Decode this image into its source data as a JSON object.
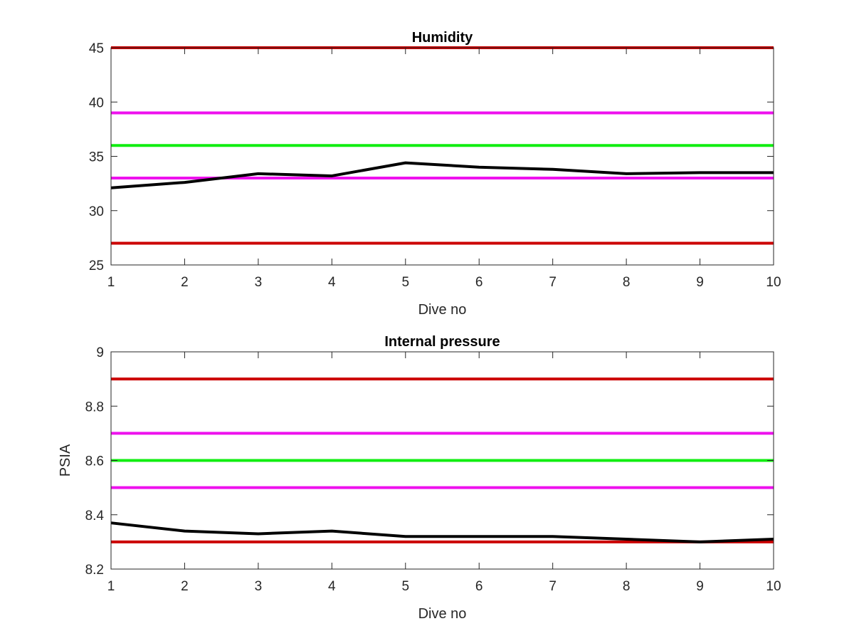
{
  "chart_data": [
    {
      "type": "line",
      "title": "Humidity",
      "xlabel": "Dive no",
      "ylabel": "",
      "xlim": [
        1,
        10
      ],
      "ylim": [
        25,
        45
      ],
      "xticks": [
        1,
        2,
        3,
        4,
        5,
        6,
        7,
        8,
        9,
        10
      ],
      "yticks": [
        25,
        30,
        35,
        40,
        45
      ],
      "grid": false,
      "reference_lines": [
        {
          "y": 45,
          "color": "#cc0000"
        },
        {
          "y": 39,
          "color": "#ee11ee"
        },
        {
          "y": 36,
          "color": "#11ee11"
        },
        {
          "y": 33,
          "color": "#ee11ee"
        },
        {
          "y": 27,
          "color": "#cc0000"
        }
      ],
      "series": [
        {
          "color": "#000000",
          "x": [
            1,
            2,
            3,
            4,
            5,
            6,
            7,
            8,
            9,
            10
          ],
          "values": [
            32.1,
            32.6,
            33.4,
            33.2,
            34.4,
            34.0,
            33.8,
            33.4,
            33.5,
            33.5
          ]
        }
      ]
    },
    {
      "type": "line",
      "title": "Internal pressure",
      "xlabel": "Dive no",
      "ylabel": "PSIA",
      "xlim": [
        1,
        10
      ],
      "ylim": [
        8.2,
        9
      ],
      "xticks": [
        1,
        2,
        3,
        4,
        5,
        6,
        7,
        8,
        9,
        10
      ],
      "yticks": [
        8.2,
        8.4,
        8.6,
        8.8,
        9
      ],
      "grid": false,
      "reference_lines": [
        {
          "y": 8.9,
          "color": "#cc0000"
        },
        {
          "y": 8.7,
          "color": "#ee11ee"
        },
        {
          "y": 8.6,
          "color": "#11ee11"
        },
        {
          "y": 8.5,
          "color": "#ee11ee"
        },
        {
          "y": 8.3,
          "color": "#cc0000"
        }
      ],
      "series": [
        {
          "color": "#000000",
          "x": [
            1,
            2,
            3,
            4,
            5,
            6,
            7,
            8,
            9,
            10
          ],
          "values": [
            8.37,
            8.34,
            8.33,
            8.34,
            8.32,
            8.32,
            8.32,
            8.31,
            8.3,
            8.31
          ]
        }
      ]
    }
  ]
}
